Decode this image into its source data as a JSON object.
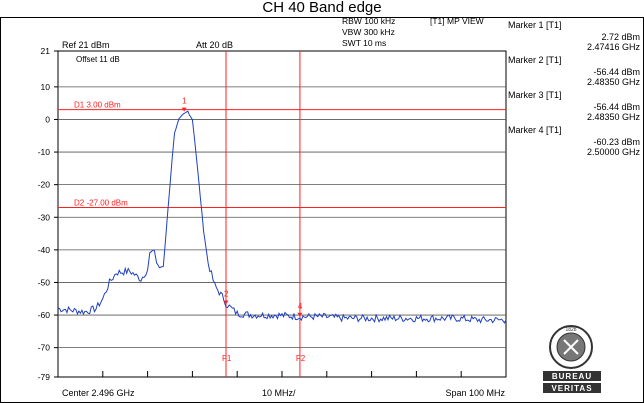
{
  "title": "CH 40 Band edge",
  "settings": {
    "ref_level": "Ref 21 dBm",
    "attenuation": "Att  20 dB",
    "offset": "Offset 11 dB",
    "rbw": "RBW 100 kHz",
    "vbw": "VBW 300 kHz",
    "swt": "SWT 10 ms",
    "trace_mode": "[T1] MP VIEW"
  },
  "footer": {
    "center": "Center 2.496 GHz",
    "per_div": "10 MHz/",
    "span": "Span 100 MHz"
  },
  "logo": {
    "top_text": "BUREAU",
    "bottom_text": "VERITAS",
    "year": "1828"
  },
  "colors": {
    "trace": "#2040c0",
    "marker_lines": "#ff2020",
    "grid": "#000000",
    "logo": "#333333"
  },
  "markers": [
    {
      "title": "Marker 1 [T1]",
      "level": "2.72 dBm",
      "freq": "2.47416 GHz"
    },
    {
      "title": "Marker 2 [T1]",
      "level": "-56.44 dBm",
      "freq": "2.48350 GHz"
    },
    {
      "title": "Marker 3 [T1]",
      "level": "-56.44 dBm",
      "freq": "2.48350 GHz"
    },
    {
      "title": "Marker 4 [T1]",
      "level": "-60.23 dBm",
      "freq": "2.50000 GHz"
    }
  ],
  "chart_data": {
    "type": "line",
    "title": "CH 40 Band edge",
    "xlabel": "",
    "ylabel": "",
    "xlim": [
      2.446,
      2.546
    ],
    "ylim": [
      -79,
      21
    ],
    "yticks": [
      21,
      10,
      0,
      -10,
      -20,
      -30,
      -40,
      -50,
      -60,
      -70,
      -79
    ],
    "ytick_labels": [
      "21",
      "10",
      "0",
      "-10",
      "-20",
      "-30",
      "-40",
      "-50",
      "-60",
      "-70",
      "-79"
    ],
    "grid": true,
    "x_unit": "GHz",
    "y_unit": "dBm",
    "display_lines": [
      {
        "label": "D1 3.00 dBm",
        "y": 3
      },
      {
        "label": "D2 -27.00 dBm",
        "y": -27
      }
    ],
    "frequency_lines": [
      {
        "label": "F1",
        "x": 2.4835
      },
      {
        "label": "F2",
        "x": 2.5
      }
    ],
    "marker_points": [
      {
        "label": "1",
        "x": 2.47416,
        "y": 2.72
      },
      {
        "label": "2",
        "x": 2.4835,
        "y": -56.44
      },
      {
        "label": "4",
        "x": 2.5,
        "y": -60.23
      }
    ],
    "series": [
      {
        "x": [
          2.446,
          2.449,
          2.452,
          2.4545,
          2.456,
          2.4575,
          2.459,
          2.462,
          2.4645,
          2.466,
          2.4665,
          2.4675,
          2.468,
          2.469,
          2.4695,
          2.47,
          2.4705,
          2.471,
          2.4715,
          2.472,
          2.473,
          2.474,
          2.475,
          2.476,
          2.4765,
          2.4775,
          2.4785,
          2.4795,
          2.481,
          2.483,
          2.4835,
          2.486,
          2.49,
          2.495,
          2.5,
          2.505,
          2.51,
          2.515,
          2.52,
          2.525,
          2.53,
          2.535,
          2.54,
          2.546
        ],
        "y": [
          -58,
          -58.5,
          -59,
          -58,
          -55,
          -50,
          -47,
          -46.5,
          -49,
          -46,
          -41,
          -40,
          -44,
          -46,
          -45,
          -37,
          -28,
          -20,
          -12,
          -4,
          0,
          1.5,
          2.5,
          0,
          -6,
          -20,
          -34,
          -44,
          -51,
          -55,
          -56.5,
          -59.5,
          -60,
          -60,
          -60.5,
          -60.5,
          -61,
          -61,
          -61,
          -61,
          -61,
          -61,
          -61.5,
          -61.5
        ]
      }
    ]
  }
}
